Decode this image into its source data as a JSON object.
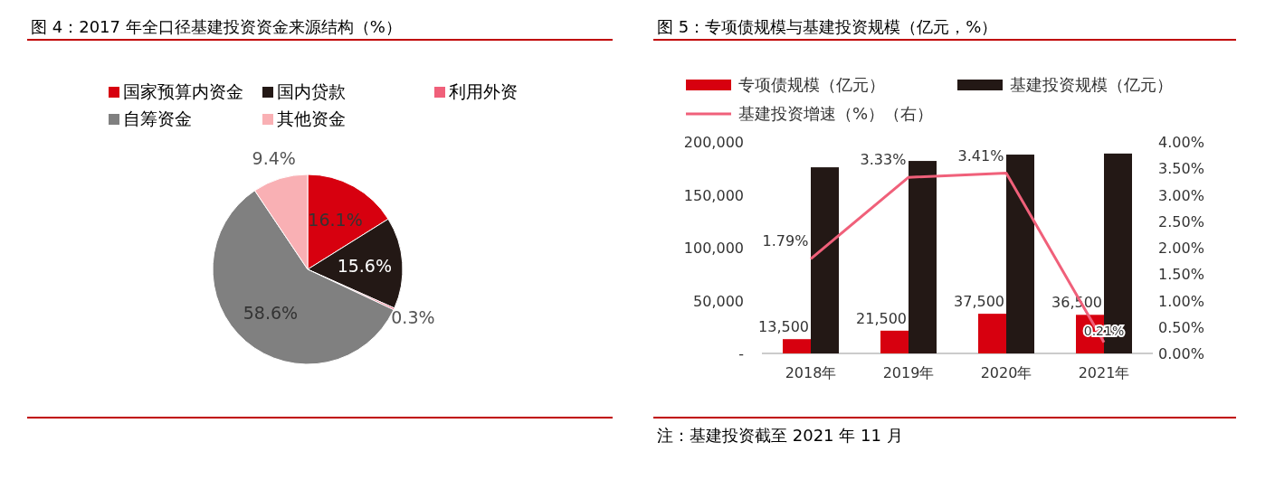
{
  "chart_data": [
    {
      "type": "pie",
      "title": "图 4：2017 年全口径基建投资资金来源结构（%）",
      "legend": "top",
      "categories": [
        "国家预算内资金",
        "国内贷款",
        "利用外资",
        "自筹资金",
        "其他资金"
      ],
      "values": [
        16.1,
        15.6,
        0.3,
        58.6,
        9.4
      ],
      "colors": [
        "#d7000f",
        "#231815",
        "#f0607a",
        "#808080",
        "#f9b0b4"
      ],
      "value_labels": [
        "16.1%",
        "15.6%",
        "0.3%",
        "58.6%",
        "9.4%"
      ]
    },
    {
      "type": "bar",
      "title": "图 5：专项债规模与基建投资规模（亿元，%）",
      "legend": "top",
      "categories": [
        "2018年",
        "2019年",
        "2020年",
        "2021年"
      ],
      "series": [
        {
          "name": "专项债规模（亿元）",
          "color": "#d7000f",
          "values": [
            13500,
            21500,
            37500,
            36500
          ],
          "value_labels": [
            "13,500",
            "21,500",
            "37,500",
            "36,500"
          ]
        },
        {
          "name": "基建投资规模（亿元）",
          "color": "#231815",
          "values": [
            176000,
            182000,
            188000,
            189000
          ]
        },
        {
          "name": "基建投资增速（%）（右）",
          "type": "line",
          "axis": "y2",
          "color": "#f0607a",
          "values": [
            1.79,
            3.33,
            3.41,
            0.21
          ],
          "value_labels": [
            "1.79%",
            "3.33%",
            "3.41%",
            "0.21%"
          ]
        }
      ],
      "ylim": [
        0,
        200000
      ],
      "yticks": [
        {
          "value": 0,
          "label": "-"
        },
        {
          "value": 50000,
          "label": "50,000"
        },
        {
          "value": 100000,
          "label": "100,000"
        },
        {
          "value": 150000,
          "label": "150,000"
        },
        {
          "value": 200000,
          "label": "200,000"
        }
      ],
      "y2lim": [
        0,
        4
      ],
      "y2ticks": [
        {
          "value": 0,
          "label": "0.00%"
        },
        {
          "value": 0.5,
          "label": "0.50%"
        },
        {
          "value": 1,
          "label": "1.00%"
        },
        {
          "value": 1.5,
          "label": "1.50%"
        },
        {
          "value": 2,
          "label": "2.00%"
        },
        {
          "value": 2.5,
          "label": "2.50%"
        },
        {
          "value": 3,
          "label": "3.00%"
        },
        {
          "value": 3.5,
          "label": "3.50%"
        },
        {
          "value": 4,
          "label": "4.00%"
        }
      ],
      "annotations": [
        "注：基建投资截至 2021 年 11 月"
      ]
    }
  ]
}
